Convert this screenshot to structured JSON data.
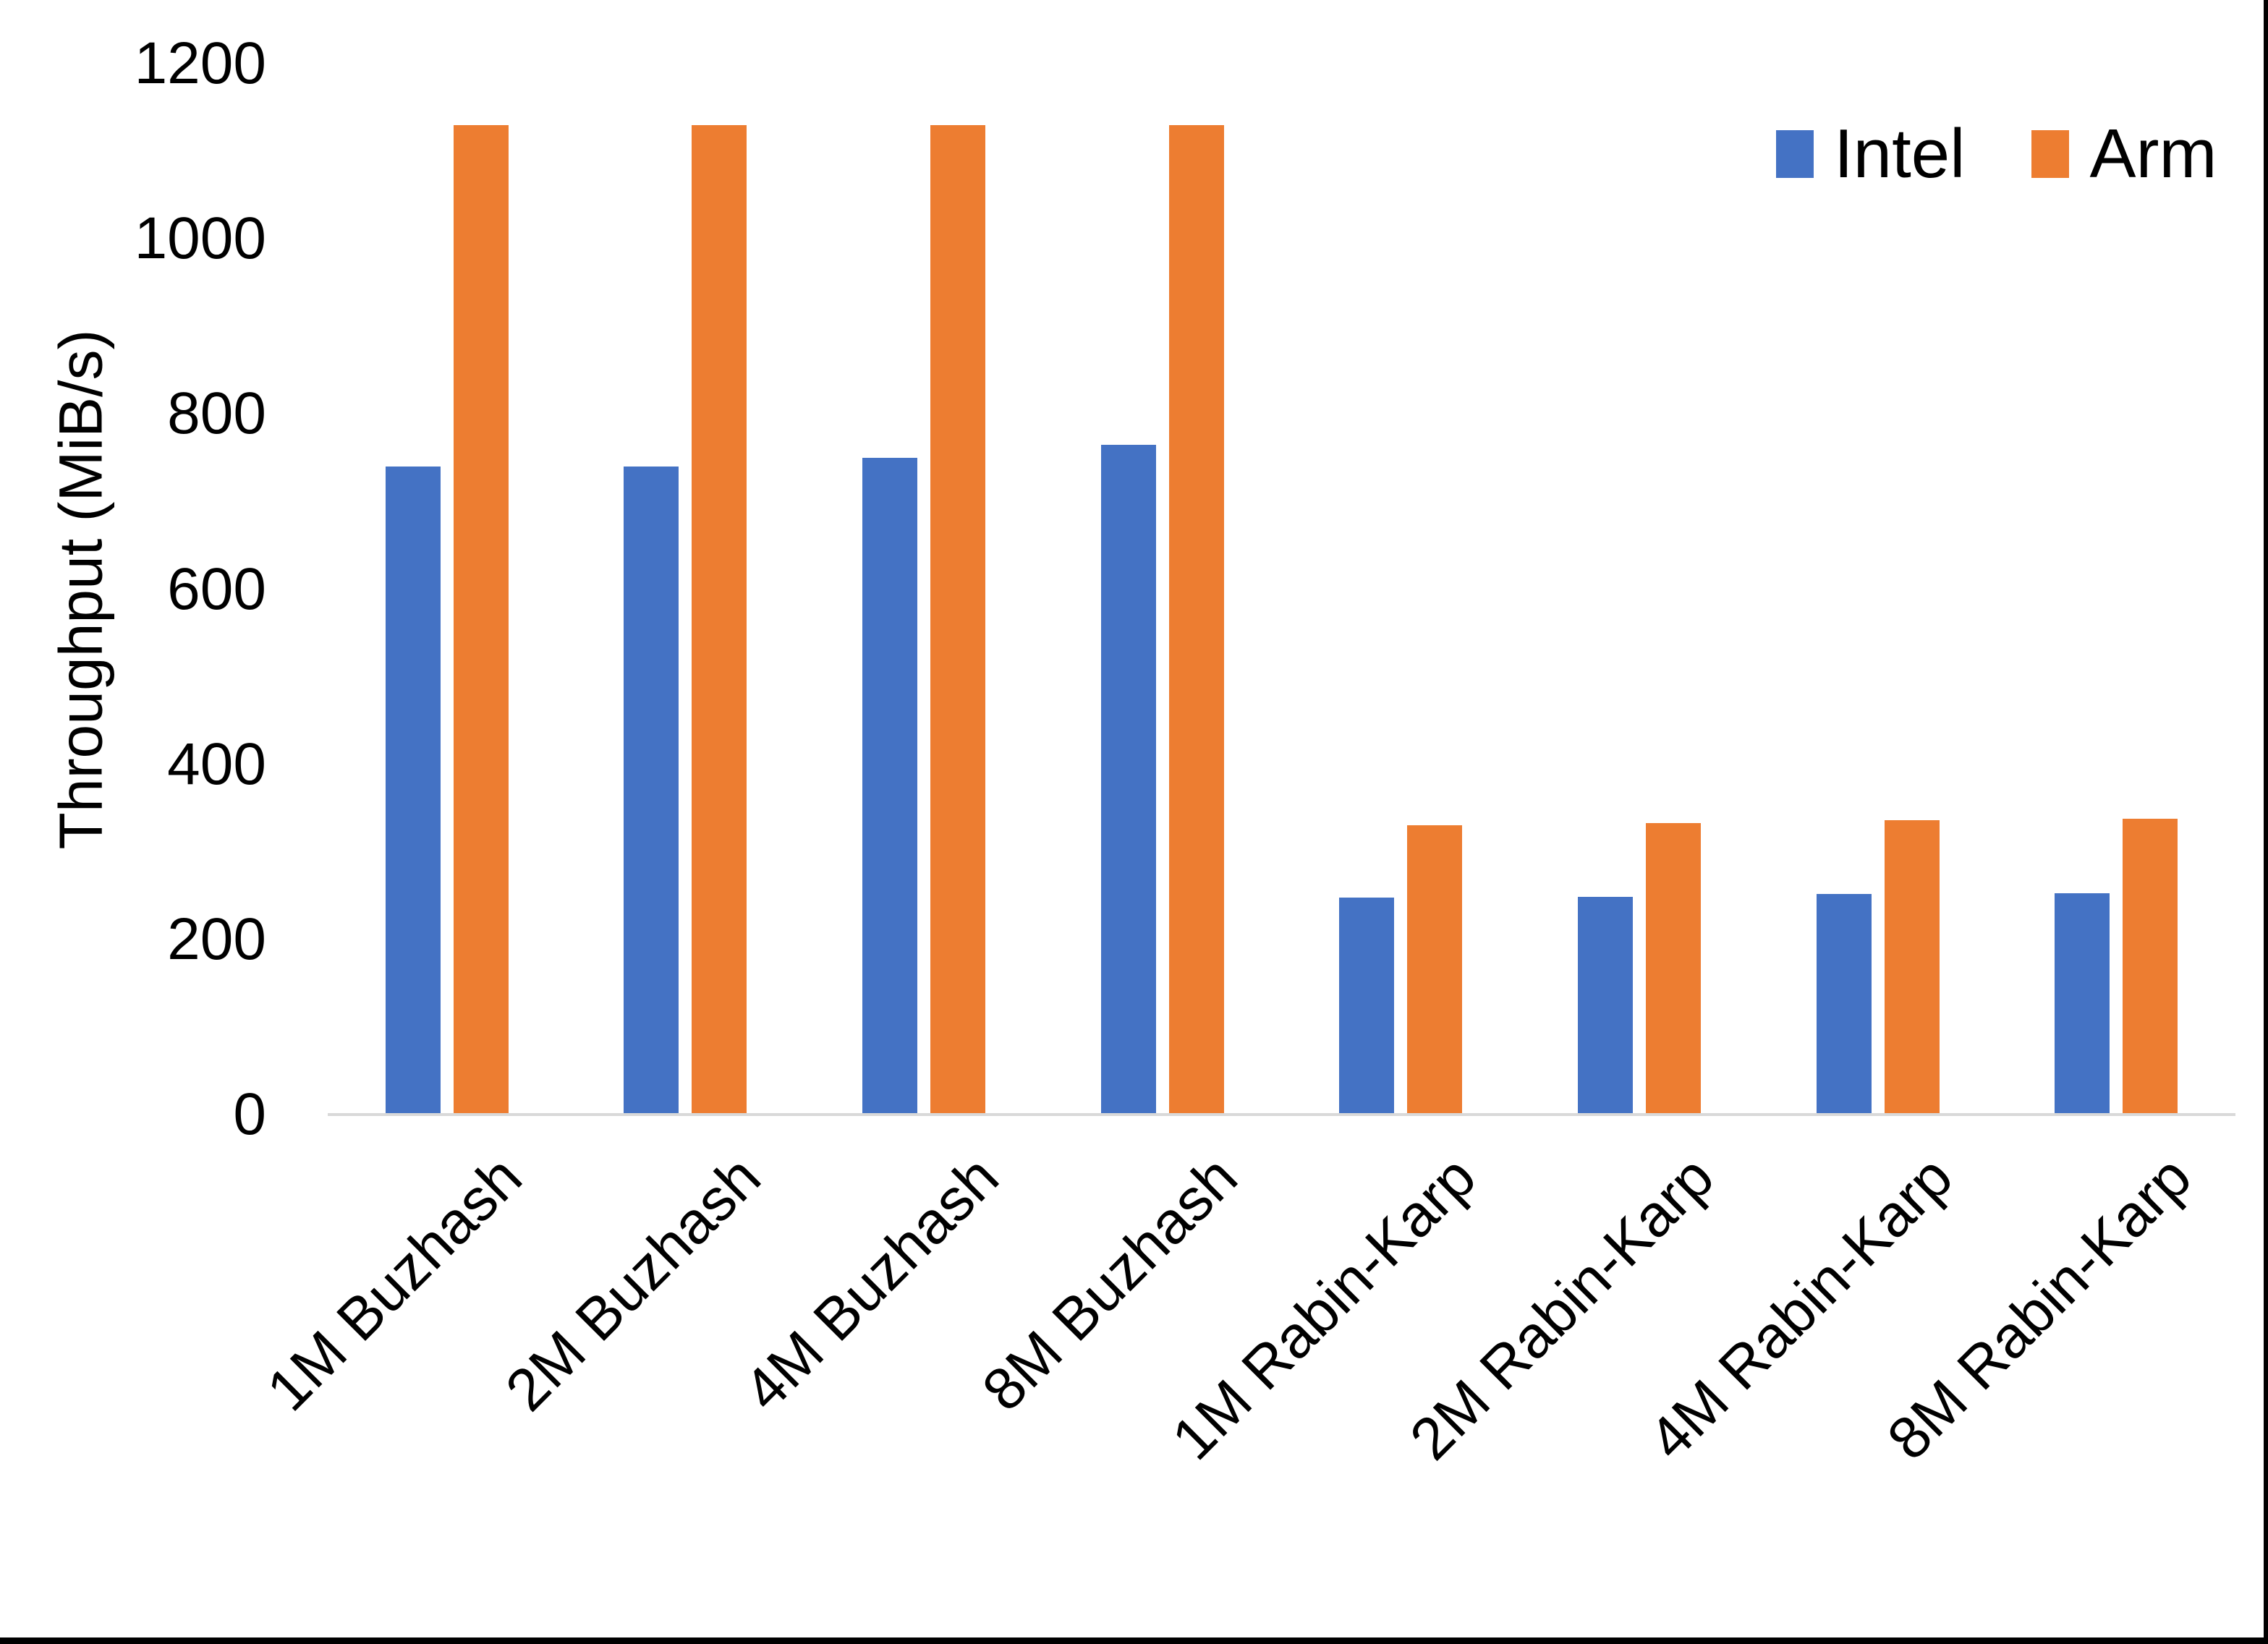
{
  "chart_data": {
    "type": "bar",
    "title": "",
    "xlabel": "",
    "ylabel": "Throughput (MiB/s)",
    "ylim": [
      0,
      1200
    ],
    "yticks": [
      0,
      200,
      400,
      600,
      800,
      1000,
      1200
    ],
    "grid": false,
    "legend_position": "top-right",
    "axis_line_color": "#D9D9D9",
    "text_color": "#000000",
    "categories": [
      "1M Buzhash",
      "2M Buzhash",
      "4M Buzhash",
      "8M Buzhash",
      "1M Rabin-Karp",
      "2M Rabin-Karp",
      "4M Rabin-Karp",
      "8M Rabin-Karp"
    ],
    "series": [
      {
        "name": "Intel",
        "color": "#4472C4",
        "values": [
          740,
          740,
          750,
          765,
          248,
          249,
          252,
          253
        ]
      },
      {
        "name": "Arm",
        "color": "#ED7D31",
        "values": [
          1130,
          1130,
          1130,
          1130,
          330,
          333,
          336,
          338
        ]
      }
    ]
  }
}
